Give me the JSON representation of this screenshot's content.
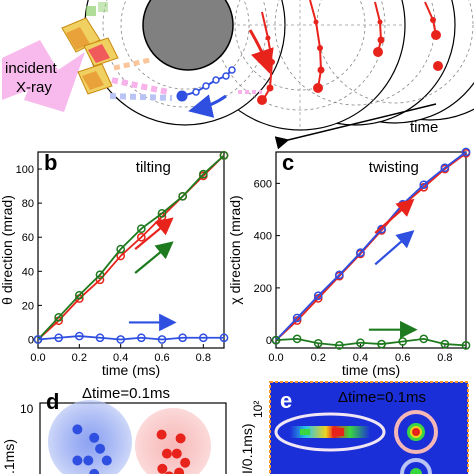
{
  "panel_a": {
    "label_incident": "incident",
    "label_xray": "X-ray",
    "label_time": "time"
  },
  "chart_data": [
    {
      "panel": "b",
      "type": "line",
      "title": "tilting",
      "xlabel": "time (ms)",
      "ylabel": "θ direction (mrad)",
      "xlim": [
        0,
        0.9
      ],
      "ylim": [
        -5,
        110
      ],
      "xticks": [
        "0.0",
        "0.2",
        "0.4",
        "0.6",
        "0.8"
      ],
      "yticks": [
        "0",
        "20",
        "40",
        "60",
        "80",
        "100"
      ],
      "x": [
        0.0,
        0.1,
        0.2,
        0.3,
        0.4,
        0.5,
        0.6,
        0.7,
        0.8,
        0.9
      ],
      "series": [
        {
          "color": "#e8231c",
          "values": [
            0,
            11,
            24,
            35,
            49,
            60,
            72,
            84,
            96,
            108
          ]
        },
        {
          "color": "#1e7a1e",
          "values": [
            0,
            13,
            26,
            38,
            53,
            65,
            74,
            84,
            97,
            108
          ]
        },
        {
          "color": "#2f4fe0",
          "values": [
            0,
            1,
            2,
            1,
            0,
            1,
            0,
            1,
            1,
            1
          ]
        }
      ],
      "arrows": [
        {
          "color": "#e8231c",
          "x0": 0.47,
          "y0": 53,
          "x1": 0.64,
          "y1": 70
        },
        {
          "color": "#1e7a1e",
          "x0": 0.47,
          "y0": 39,
          "x1": 0.64,
          "y1": 56
        },
        {
          "color": "#2f4fe0",
          "x0": 0.44,
          "y0": 10,
          "x1": 0.65,
          "y1": 10
        }
      ]
    },
    {
      "panel": "c",
      "type": "line",
      "title": "twisting",
      "xlabel": "time (ms)",
      "ylabel": "χ direction (mrad)",
      "xlim": [
        0,
        0.9
      ],
      "ylim": [
        -30,
        720
      ],
      "xticks": [
        "0.0",
        "0.2",
        "0.4",
        "0.6",
        "0.8"
      ],
      "yticks": [
        "0",
        "200",
        "400",
        "600"
      ],
      "x": [
        0.0,
        0.1,
        0.2,
        0.3,
        0.4,
        0.5,
        0.6,
        0.7,
        0.8,
        0.9
      ],
      "series": [
        {
          "color": "#e8231c",
          "values": [
            0,
            75,
            160,
            245,
            330,
            420,
            515,
            585,
            655,
            715
          ]
        },
        {
          "color": "#2f4fe0",
          "values": [
            0,
            85,
            170,
            250,
            335,
            425,
            520,
            595,
            660,
            720
          ]
        },
        {
          "color": "#1e7a1e",
          "values": [
            0,
            5,
            -12,
            -20,
            -10,
            -15,
            -5,
            5,
            -15,
            -20
          ]
        }
      ],
      "arrows": [
        {
          "color": "#e8231c",
          "x0": 0.47,
          "y0": 410,
          "x1": 0.64,
          "y1": 530
        },
        {
          "color": "#2f4fe0",
          "x0": 0.47,
          "y0": 290,
          "x1": 0.64,
          "y1": 410
        },
        {
          "color": "#1e7a1e",
          "x0": 0.44,
          "y0": 40,
          "x1": 0.65,
          "y1": 40
        }
      ]
    }
  ],
  "panel_d": {
    "label": "d",
    "title": "Δtime=0.1ms",
    "ytick": "10",
    "ylabel_fragment": ".1ms)",
    "blue_points": [
      [
        0.35,
        0.35
      ],
      [
        0.55,
        0.45
      ],
      [
        0.35,
        0.72
      ],
      [
        0.48,
        0.72
      ],
      [
        0.62,
        0.58
      ],
      [
        0.7,
        0.72
      ],
      [
        0.55,
        0.88
      ],
      [
        0.4,
        0.96
      ]
    ],
    "red_points": [
      [
        0.35,
        0.35
      ],
      [
        0.6,
        0.4
      ],
      [
        0.42,
        0.6
      ],
      [
        0.55,
        0.6
      ],
      [
        0.36,
        0.8
      ],
      [
        0.45,
        0.9
      ],
      [
        0.58,
        0.85
      ],
      [
        0.66,
        0.72
      ]
    ]
  },
  "panel_e": {
    "label": "e",
    "title": "Δtime=0.1ms",
    "ytick": "10²",
    "ylabel_fragment": "I/0.1ms)"
  }
}
